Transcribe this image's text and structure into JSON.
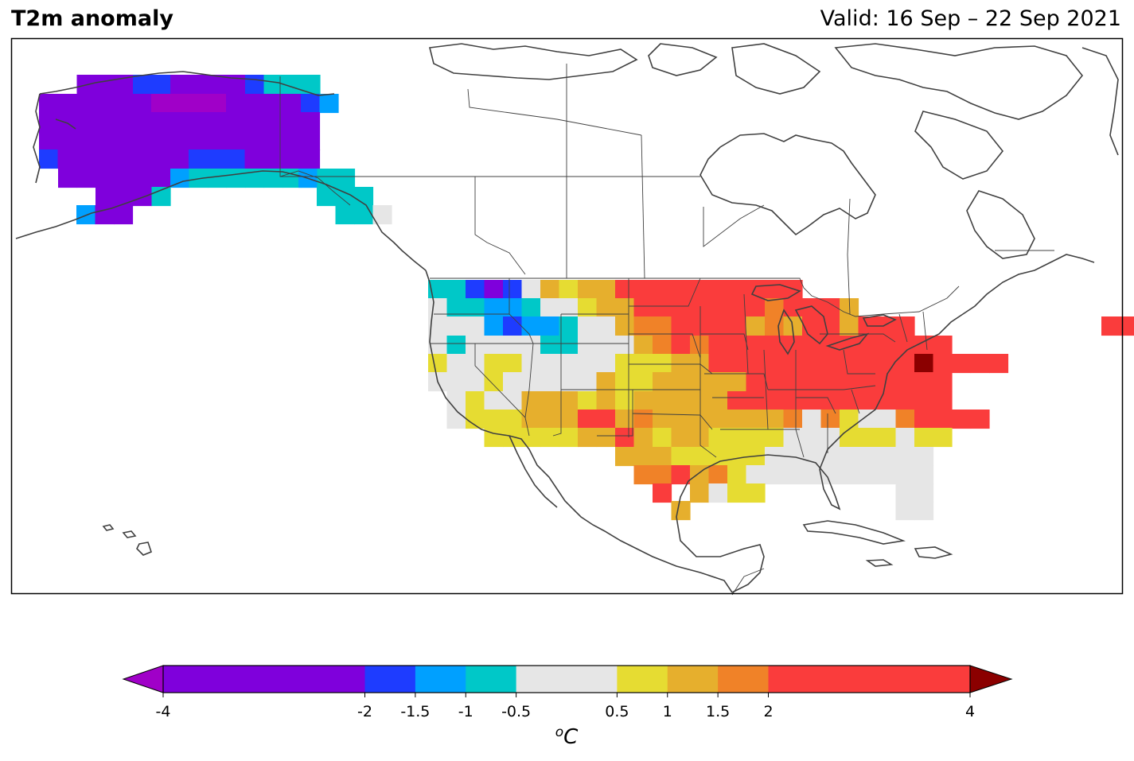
{
  "header": {
    "title": "T2m anomaly",
    "valid": "Valid: 16 Sep – 22 Sep 2021"
  },
  "colorbar": {
    "unit_label": "⁰C",
    "unit_base": "C",
    "unit_sup": "o",
    "bounds": [
      -4,
      -2,
      -1.5,
      -1,
      -0.5,
      0.5,
      1,
      1.5,
      2,
      4
    ],
    "tick_labels": [
      "-4",
      "-2",
      "-1.5",
      "-1",
      "-0.5",
      "0.5",
      "1",
      "1.5",
      "2",
      "4"
    ],
    "colors": [
      "#7f00dc",
      "#1e3cff",
      "#00a0ff",
      "#00c8c8",
      "#e6e6e6",
      "#e6dc32",
      "#e6af2d",
      "#f08228",
      "#fa3c3c"
    ],
    "under_color": "#a000c8",
    "over_color": "#8b0000"
  },
  "anomaly_cells": {
    "palette": {
      "P": "#7f00dc",
      "Q": "#a000c8",
      "B": "#1e3cff",
      "L": "#00a0ff",
      "C": "#00c8c8",
      "G": "#e6e6e6",
      "Y": "#e6dc32",
      "O": "#e6af2d",
      "R": "#f08228",
      "D": "#fa3c3c",
      "K": "#8b0000"
    },
    "note_units": "grid of ~2-degree anomaly cells, letters index palette"
  }
}
